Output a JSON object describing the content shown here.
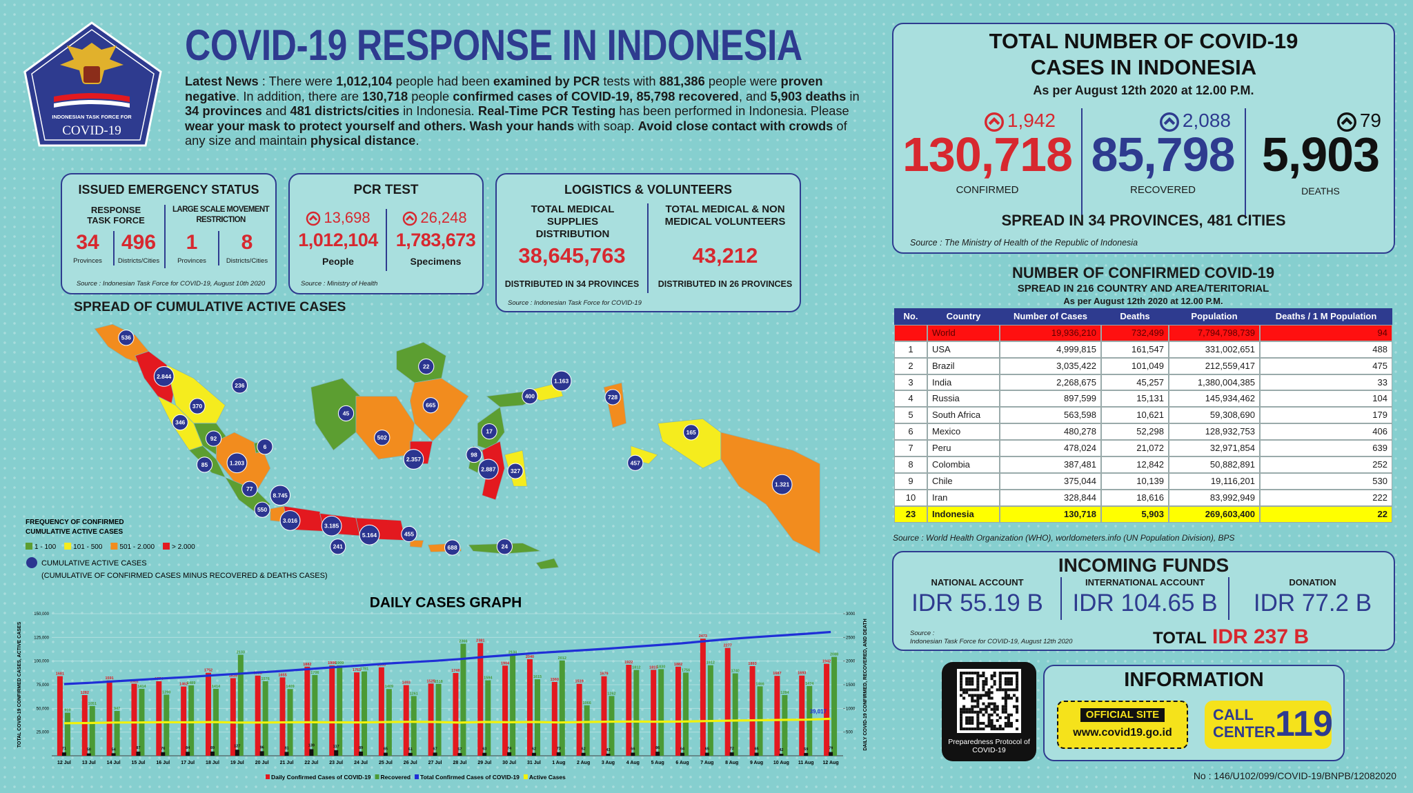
{
  "header": {
    "title": "COVID-19 RESPONSE IN INDONESIA",
    "logo_line1": "INDONESIAN TASK FORCE FOR",
    "logo_line2": "COVID-19"
  },
  "news": {
    "segments": [
      {
        "text": "Latest News",
        "bold": true
      },
      {
        "text": " : There were ",
        "bold": false
      },
      {
        "text": "1,012,104",
        "bold": true
      },
      {
        "text": " people had been ",
        "bold": false
      },
      {
        "text": "examined by PCR",
        "bold": true
      },
      {
        "text": " tests with ",
        "bold": false
      },
      {
        "text": "881,386",
        "bold": true
      },
      {
        "text": " people were ",
        "bold": false
      },
      {
        "text": "proven negative",
        "bold": true
      },
      {
        "text": ". In addition, there are ",
        "bold": false
      },
      {
        "text": "130,718",
        "bold": true
      },
      {
        "text": " people ",
        "bold": false
      },
      {
        "text": "confirmed cases of COVID-19, 85,798 recovered",
        "bold": true
      },
      {
        "text": ", and ",
        "bold": false
      },
      {
        "text": "5,903 deaths",
        "bold": true
      },
      {
        "text": " in ",
        "bold": false
      },
      {
        "text": "34 provinces",
        "bold": true
      },
      {
        "text": " and ",
        "bold": false
      },
      {
        "text": "481 districts/cities",
        "bold": true
      },
      {
        "text": " in Indonesia. ",
        "bold": false
      },
      {
        "text": "Real-Time PCR Testing",
        "bold": true
      },
      {
        "text": " has been performed in Indonesia. Please ",
        "bold": false
      },
      {
        "text": "wear your mask to protect yourself and others. Wash your hands",
        "bold": true
      },
      {
        "text": " with soap. ",
        "bold": false
      },
      {
        "text": "Avoid close contact with crowds",
        "bold": true
      },
      {
        "text": " of any size and maintain ",
        "bold": false
      },
      {
        "text": "physical distance",
        "bold": true
      },
      {
        "text": ".",
        "bold": false
      }
    ]
  },
  "emergency": {
    "title": "ISSUED EMERGENCY STATUS",
    "groups": [
      {
        "label": "RESPONSE TASK FORCE",
        "items": [
          {
            "value": "34",
            "unit": "Provinces"
          },
          {
            "value": "496",
            "unit": "Districts/Cities"
          }
        ]
      },
      {
        "label": "LARGE SCALE MOVEMENT RESTRICTION",
        "items": [
          {
            "value": "1",
            "unit": "Provinces"
          },
          {
            "value": "8",
            "unit": "Districts/Cities"
          }
        ]
      }
    ],
    "source": "Source : Indonesian Task Force for COVID-19, August 10th 2020"
  },
  "pcr": {
    "title": "PCR TEST",
    "items": [
      {
        "increase": "13,698",
        "value": "1,012,104",
        "label": "People"
      },
      {
        "increase": "26,248",
        "value": "1,783,673",
        "label": "Specimens"
      }
    ],
    "source": "Source : Ministry of Health"
  },
  "logistics": {
    "title": "LOGISTICS & VOLUNTEERS",
    "items": [
      {
        "label": "TOTAL MEDICAL SUPPLIES DISTRIBUTION",
        "value": "38,645,763",
        "note": "DISTRIBUTED IN 34 PROVINCES"
      },
      {
        "label": "TOTAL MEDICAL & NON MEDICAL VOLUNTEERS",
        "value": "43,212",
        "note": "DISTRIBUTED IN 26 PROVINCES"
      }
    ],
    "source": "Source : Indonesian Task Force for COVID-19"
  },
  "totals": {
    "title_lines": [
      "TOTAL NUMBER OF COVID-19",
      "CASES IN INDONESIA"
    ],
    "subtitle": "As per August 12th 2020 at 12.00 P.M.",
    "items": [
      {
        "increase": "1,942",
        "value": "130,718",
        "label": "CONFIRMED"
      },
      {
        "increase": "2,088",
        "value": "85,798",
        "label": "RECOVERED"
      },
      {
        "increase": "79",
        "value": "5,903",
        "label": "DEATHS"
      }
    ],
    "spread": "SPREAD IN 34 PROVINCES, 481 CITIES",
    "source": "Source : The Ministry of Health of the Republic of Indonesia"
  },
  "world_table": {
    "title": "NUMBER OF CONFIRMED COVID-19",
    "subtitle": "SPREAD IN 216 COUNTRY AND AREA/TERITORIAL",
    "date": "As per August 12th 2020 at 12.00 P.M.",
    "columns": [
      "No.",
      "Country",
      "Number of Cases",
      "Deaths",
      "Population",
      "Deaths / 1 M Population"
    ],
    "rows": [
      [
        null,
        "World",
        "19,936,210",
        "732,499",
        "7,794,798,739",
        "94"
      ],
      [
        "1",
        "USA",
        "4,999,815",
        "161,547",
        "331,002,651",
        "488"
      ],
      [
        "2",
        "Brazil",
        "3,035,422",
        "101,049",
        "212,559,417",
        "475"
      ],
      [
        "3",
        "India",
        "2,268,675",
        "45,257",
        "1,380,004,385",
        "33"
      ],
      [
        "4",
        "Russia",
        "897,599",
        "15,131",
        "145,934,462",
        "104"
      ],
      [
        "5",
        "South Africa",
        "563,598",
        "10,621",
        "59,308,690",
        "179"
      ],
      [
        "6",
        "Mexico",
        "480,278",
        "52,298",
        "128,932,753",
        "406"
      ],
      [
        "7",
        "Peru",
        "478,024",
        "21,072",
        "32,971,854",
        "639"
      ],
      [
        "8",
        "Colombia",
        "387,481",
        "12,842",
        "50,882,891",
        "252"
      ],
      [
        "9",
        "Chile",
        "375,044",
        "10,139",
        "19,116,201",
        "530"
      ],
      [
        "10",
        "Iran",
        "328,844",
        "18,616",
        "83,992,949",
        "222"
      ],
      [
        "23",
        "Indonesia",
        "130,718",
        "5,903",
        "269,603,400",
        "22"
      ]
    ],
    "source": "Source : World Health Organization (WHO), worldometers.info (UN Population Division), BPS"
  },
  "funds": {
    "title": "INCOMING FUNDS",
    "items": [
      {
        "label": "NATIONAL ACCOUNT",
        "value": "IDR 55.19 B"
      },
      {
        "label": "INTERNATIONAL ACCOUNT",
        "value": "IDR 104.65 B"
      },
      {
        "label": "DONATION",
        "value": "IDR 77.2 B"
      }
    ],
    "source_label": "Source :",
    "source": "Indonesian Task Force for COVID-19, August 12th 2020",
    "total_label": "TOTAL",
    "total": "IDR 237 B"
  },
  "information": {
    "qr_caption": "Preparedness Protocol of COVID-19",
    "title": "INFORMATION",
    "site_label": "OFFICIAL SITE",
    "site": "www.covid19.go.id",
    "call_line1": "CALL",
    "call_line2": "CENTER",
    "call_number": "119"
  },
  "map": {
    "title": "SPREAD OF CUMULATIVE ACTIVE CASES",
    "legend_title_lines": [
      "FREQUENCY OF CONFIRMED",
      "CUMULATIVE ACTIVE CASES"
    ],
    "legend": [
      {
        "label": "1 - 100",
        "color": "#5c9e31"
      },
      {
        "label": "101 - 500",
        "color": "#f5ec1e"
      },
      {
        "label": "501 - 2.000",
        "color": "#f28c1e"
      },
      {
        "label": "> 2.000",
        "color": "#e3191f"
      }
    ],
    "marker_label": "CUMULATIVE ACTIVE CASES",
    "marker_note": "(CUMULATIVE OF CONFIRMED CASES MINUS RECOVERED & DEATHS CASES)",
    "markers": [
      "536",
      "2.844",
      "236",
      "370",
      "346",
      "92",
      "6",
      "85",
      "1.203",
      "77",
      "8.745",
      "550",
      "3.016",
      "3.185",
      "241",
      "5.164",
      "455",
      "688",
      "24",
      "45",
      "502",
      "22",
      "665",
      "2.357",
      "17",
      "98",
      "2.887",
      "327",
      "400",
      "1.163",
      "728",
      "165",
      "457",
      "1.321"
    ]
  },
  "footer": "No : 146/U102/099/COVID-19/BNPB/12082020",
  "chart_data": {
    "type": "bar",
    "title": "DAILY CASES GRAPH",
    "categories": [
      "12 Jul",
      "13 Jul",
      "14 Jul",
      "15 Jul",
      "16 Jul",
      "17 Jul",
      "18 Jul",
      "19 Jul",
      "20 Jul",
      "21 Jul",
      "22 Jul",
      "23 Jul",
      "24 Jul",
      "25 Jul",
      "26 Jul",
      "27 Jul",
      "28 Jul",
      "29 Jul",
      "30 Jul",
      "31 Jul",
      "1 Aug",
      "2 Aug",
      "3 Aug",
      "4 Aug",
      "5 Aug",
      "6 Aug",
      "7 Aug",
      "8 Aug",
      "9 Aug",
      "10 Aug",
      "11 Aug",
      "12 Aug"
    ],
    "ylabel": "TOTAL COVID-19 CONFIRMED CASES, ACTIVE CASES",
    "y2label": "DAILY COVID-19 CONFIRMED, RECOVERED, AND DEATH",
    "ylim": [
      0,
      150000
    ],
    "yticks": [
      {
        "value": 25000,
        "label": "25,000"
      },
      {
        "value": 50000,
        "label": "50,000"
      },
      {
        "value": 75000,
        "label": "75,000"
      },
      {
        "value": 100000,
        "label": "100,000"
      },
      {
        "value": 125000,
        "label": "125,000"
      },
      {
        "value": 150000,
        "label": "150,000"
      }
    ],
    "y2lim": [
      0,
      3000
    ],
    "y2ticks": [
      500,
      1000,
      1500,
      2000,
      2500,
      3000
    ],
    "grid": true,
    "series": [
      {
        "name": "Daily Confirmed Cases of COVID-19",
        "type": "bar",
        "axis": "y2",
        "color": "#e3191f",
        "values": [
          1681,
          1282,
          1591,
          1522,
          1574,
          1462,
          1752,
          1639,
          1693,
          1655,
          1882,
          1906,
          1761,
          1868,
          1493,
          1525,
          1748,
          2381,
          1904,
          2040,
          1560,
          1519,
          1679,
          1922,
          1815,
          1882,
          2473,
          2277,
          1893,
          1687,
          1693,
          1942
        ]
      },
      {
        "name": "Recovered",
        "type": "bar",
        "axis": "y2",
        "color": "#4b9a35",
        "values": [
          910,
          1051,
          947,
          1414,
          1290,
          1489,
          1414,
          2133,
          1576,
          1409,
          1706,
          1909,
          1781,
          1409,
          1261,
          1518,
          2366,
          1594,
          2134,
          1615,
          2012,
          1066,
          1262,
          1812,
          1830,
          1756,
          1912,
          1740,
          1466,
          1284,
          1474,
          2088
        ]
      },
      {
        "type": "bar",
        "axis": "y2",
        "color": "#111111",
        "values": [
          71,
          50,
          54,
          87,
          76,
          84,
          89,
          127,
          96,
          81,
          139,
          117,
          89,
          65,
          61,
          67,
          57,
          63,
          74,
          62,
          73,
          62,
          43,
          66,
          86,
          64,
          65,
          72,
          65,
          42,
          59,
          79
        ]
      },
      {
        "name": "Total Confirmed Cases of COVID-19",
        "type": "line",
        "color": "#1f2fd6",
        "values": [
          75698,
          76980,
          78571,
          80093,
          81667,
          83129,
          84881,
          86520,
          88213,
          89868,
          91750,
          93656,
          95417,
          97285,
          98778,
          100303,
          102051,
          104432,
          106336,
          108376,
          109936,
          111455,
          113134,
          115056,
          116871,
          118753,
          121226,
          123503,
          125396,
          127083,
          128776,
          130718
        ]
      },
      {
        "name": "Active Cases",
        "type": "line",
        "color": "#f2f20a",
        "values": [
          34400,
          34600,
          35100,
          35200,
          35400,
          35300,
          35600,
          35100,
          35100,
          35300,
          35400,
          35300,
          35200,
          35600,
          35800,
          35700,
          35000,
          35700,
          35400,
          35700,
          35200,
          35600,
          36000,
          36100,
          36000,
          36100,
          36600,
          37100,
          37500,
          37900,
          38100,
          39017
        ],
        "value_labels": [
          null,
          null,
          null,
          null,
          null,
          null,
          null,
          null,
          null,
          null,
          null,
          null,
          null,
          null,
          null,
          null,
          null,
          null,
          null,
          null,
          null,
          null,
          null,
          null,
          null,
          null,
          null,
          null,
          null,
          null,
          null,
          "39,017"
        ]
      }
    ]
  }
}
